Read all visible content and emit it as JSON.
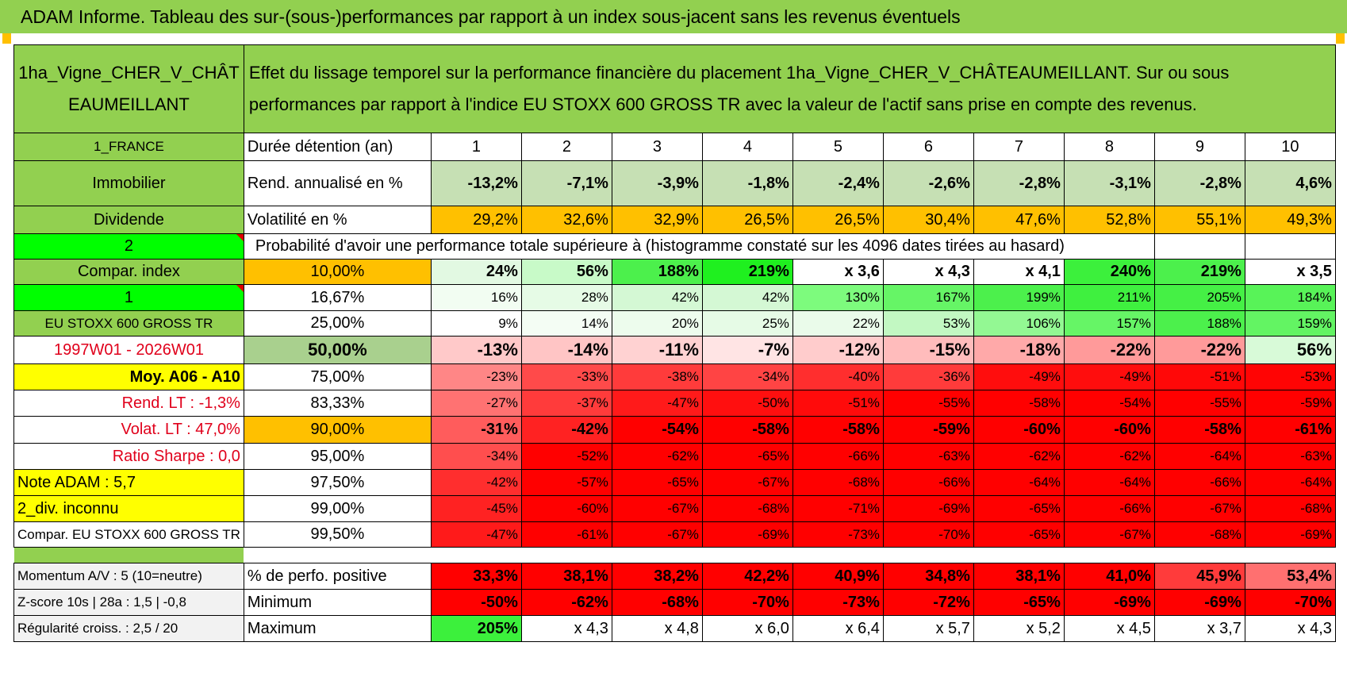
{
  "banner": {
    "title": "ADAM Informe. Tableau des sur-(sous-)performances par rapport à un index sous-jacent sans les revenus éventuels"
  },
  "colors": {
    "banner": "#92d050",
    "header_green": "#92d050",
    "orange": "#ffc000",
    "yellow": "#ffff00",
    "bright_green": "#00ff00",
    "red": "#ff0000"
  },
  "left": {
    "asset_name": "1ha_Vigne_CHER_V_CHÂTEAUMEILLANT",
    "country": "1_FRANCE",
    "category": "Immobilier",
    "dividend_label": "Dividende",
    "value_2": "2",
    "compar_index": "Compar. index",
    "value_1": "1",
    "index_name": "EU STOXX 600 GROSS TR",
    "period": "1997W01 - 2026W01",
    "moy": "Moy. A06 - A10",
    "rend_lt": "Rend. LT :    -1,3%",
    "volat_lt": "Volat. LT :    47,0%",
    "sharpe": "Ratio Sharpe :     0,0",
    "note": "Note ADAM : 5,7",
    "div": "2_div. inconnu",
    "compar_full": "Compar. EU STOXX 600 GROSS TR",
    "momentum": "Momentum A/V : 5 (10=neutre)",
    "zscore": "Z-score 10s | 28a : 1,5 | -0,8",
    "regularite": "Régularité croiss. : 2,5 / 20"
  },
  "header": {
    "description": "Effet du lissage temporel sur la performance financière du placement 1ha_Vigne_CHER_V_CHÂTEAUMEILLANT. Sur ou sous performances par rapport à l'indice EU STOXX 600 GROSS TR avec la valeur de l'actif sans prise en compte des revenus.",
    "duration_label": "Durée détention (an)",
    "years": [
      "1",
      "2",
      "3",
      "4",
      "5",
      "6",
      "7",
      "8",
      "9",
      "10"
    ]
  },
  "rend": {
    "label": "Rend. annualisé en %",
    "values": [
      "-13,2%",
      "-7,1%",
      "-3,9%",
      "-1,8%",
      "-2,4%",
      "-2,6%",
      "-2,8%",
      "-3,1%",
      "-2,8%",
      "4,6%"
    ]
  },
  "vol": {
    "label": "Volatilité en %",
    "values": [
      "29,2%",
      "32,6%",
      "32,9%",
      "26,5%",
      "26,5%",
      "30,4%",
      "47,6%",
      "52,8%",
      "55,1%",
      "49,3%"
    ]
  },
  "probability_title": "Probabilité d'avoir une performance totale supérieure à (histogramme constaté sur les 4096 dates tirées au hasard)",
  "quantiles": [
    {
      "p": "10,00%",
      "values": [
        "24%",
        "56%",
        "188%",
        "219%",
        "x 3,6",
        "x 4,3",
        "x 4,1",
        "240%",
        "219%",
        "x 3,5"
      ]
    },
    {
      "p": "16,67%",
      "values": [
        "16%",
        "28%",
        "42%",
        "42%",
        "130%",
        "167%",
        "199%",
        "211%",
        "205%",
        "184%"
      ]
    },
    {
      "p": "25,00%",
      "values": [
        "9%",
        "14%",
        "20%",
        "25%",
        "22%",
        "53%",
        "106%",
        "157%",
        "188%",
        "159%"
      ]
    },
    {
      "p": "50,00%",
      "values": [
        "-13%",
        "-14%",
        "-11%",
        "-7%",
        "-12%",
        "-15%",
        "-18%",
        "-22%",
        "-22%",
        "56%"
      ]
    },
    {
      "p": "75,00%",
      "values": [
        "-23%",
        "-33%",
        "-38%",
        "-34%",
        "-40%",
        "-36%",
        "-49%",
        "-49%",
        "-51%",
        "-53%"
      ]
    },
    {
      "p": "83,33%",
      "values": [
        "-27%",
        "-37%",
        "-47%",
        "-50%",
        "-51%",
        "-55%",
        "-58%",
        "-54%",
        "-55%",
        "-59%"
      ]
    },
    {
      "p": "90,00%",
      "values": [
        "-31%",
        "-42%",
        "-54%",
        "-58%",
        "-58%",
        "-59%",
        "-60%",
        "-60%",
        "-58%",
        "-61%"
      ]
    },
    {
      "p": "95,00%",
      "values": [
        "-34%",
        "-52%",
        "-62%",
        "-65%",
        "-66%",
        "-63%",
        "-62%",
        "-62%",
        "-64%",
        "-63%"
      ]
    },
    {
      "p": "97,50%",
      "values": [
        "-42%",
        "-57%",
        "-65%",
        "-67%",
        "-68%",
        "-66%",
        "-64%",
        "-64%",
        "-66%",
        "-64%"
      ]
    },
    {
      "p": "99,00%",
      "values": [
        "-45%",
        "-60%",
        "-67%",
        "-68%",
        "-71%",
        "-69%",
        "-65%",
        "-66%",
        "-67%",
        "-68%"
      ]
    },
    {
      "p": "99,50%",
      "values": [
        "-47%",
        "-61%",
        "-67%",
        "-69%",
        "-73%",
        "-70%",
        "-65%",
        "-67%",
        "-68%",
        "-69%"
      ]
    }
  ],
  "stats": [
    {
      "label": "% de perfo. positive",
      "values": [
        "33,3%",
        "38,1%",
        "38,2%",
        "42,2%",
        "40,9%",
        "34,8%",
        "38,1%",
        "41,0%",
        "45,9%",
        "53,4%"
      ]
    },
    {
      "label": "Minimum",
      "values": [
        "-50%",
        "-62%",
        "-68%",
        "-70%",
        "-73%",
        "-72%",
        "-65%",
        "-69%",
        "-69%",
        "-70%"
      ]
    },
    {
      "label": "Maximum",
      "values": [
        "205%",
        "x 4,3",
        "x 4,8",
        "x 6,0",
        "x 6,4",
        "x 5,7",
        "x 5,2",
        "x 4,5",
        "x 3,7",
        "x 4,3"
      ]
    }
  ]
}
